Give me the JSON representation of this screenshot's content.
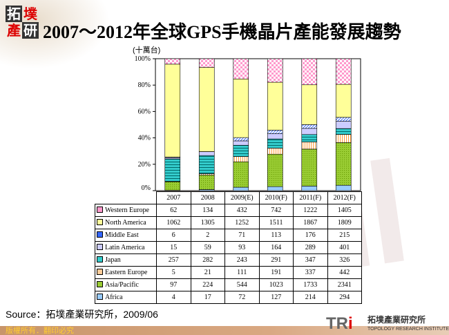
{
  "header": {
    "logo": [
      "拓",
      "墣",
      "產",
      "研"
    ],
    "title": "2007～2012年全球GPS手機晶片產能發展趨勢"
  },
  "chart_data": {
    "type": "bar",
    "stacked": "percent",
    "unit_label": "(十萬台)",
    "categories": [
      "2007",
      "2008",
      "2009(E)",
      "2010(F)",
      "2011(F)",
      "2012(F)"
    ],
    "ylim": [
      0,
      100
    ],
    "yticks": [
      "0%",
      "20%",
      "40%",
      "60%",
      "80%",
      "100%"
    ],
    "series": [
      {
        "name": "Africa",
        "color": "#99ccff",
        "values": [
          4,
          17,
          72,
          127,
          214,
          294
        ]
      },
      {
        "name": "Asia/Pacific",
        "color": "#99cc33",
        "values": [
          97,
          224,
          544,
          1023,
          1733,
          2341
        ]
      },
      {
        "name": "Eastern Europe",
        "color": "#ffcc99",
        "values": [
          5,
          21,
          111,
          191,
          337,
          442
        ]
      },
      {
        "name": "Japan",
        "color": "#33cccc",
        "values": [
          257,
          282,
          243,
          291,
          347,
          326
        ]
      },
      {
        "name": "Latin America",
        "color": "#ccccff",
        "values": [
          15,
          59,
          93,
          164,
          289,
          401
        ]
      },
      {
        "name": "Middle East",
        "color": "#3366ff",
        "values": [
          6,
          2,
          71,
          113,
          176,
          215
        ]
      },
      {
        "name": "North America",
        "color": "#ffff99",
        "values": [
          1062,
          1305,
          1252,
          1511,
          1867,
          1809
        ]
      },
      {
        "name": "Western Europe",
        "color": "#ff99cc",
        "values": [
          62,
          134,
          432,
          742,
          1222,
          1405
        ]
      }
    ]
  },
  "source": "Source：拓墣產業研究所，2009/06",
  "footer": {
    "copyright": "版權所有．翻印必究",
    "brand": "TRi",
    "brand_accent": "i",
    "brand_cn": "拓墣產業研究所",
    "brand_en": "TOPOLOGY RESEARCH INSTITUTE"
  }
}
